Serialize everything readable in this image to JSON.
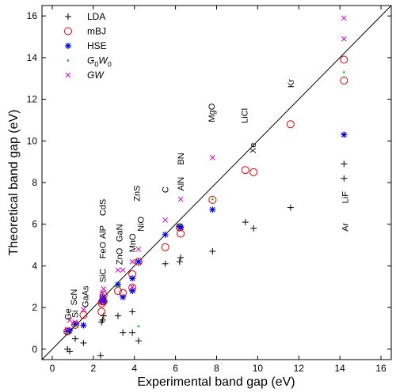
{
  "chart_data": {
    "type": "scatter",
    "xlabel": "Experimental band gap  (eV)",
    "ylabel": "Theoretical band gap  (eV)",
    "xlim": [
      -0.5,
      16.5
    ],
    "ylim": [
      -0.5,
      16.5
    ],
    "xticks": [
      0,
      2,
      4,
      6,
      8,
      10,
      12,
      14,
      16
    ],
    "yticks": [
      0,
      2,
      4,
      6,
      8,
      10,
      12,
      14,
      16
    ],
    "grid": false,
    "legend_position": "top-left",
    "reference_line": "y = x",
    "series": [
      {
        "name": "LDA",
        "marker": "plus",
        "color": "#000000",
        "points": [
          [
            0.74,
            0.0
          ],
          [
            0.85,
            -0.1
          ],
          [
            1.12,
            0.5
          ],
          [
            1.52,
            0.3
          ],
          [
            2.35,
            -0.3
          ],
          [
            2.4,
            1.3
          ],
          [
            2.45,
            1.4
          ],
          [
            2.5,
            1.6
          ],
          [
            3.2,
            1.6
          ],
          [
            3.44,
            0.8
          ],
          [
            3.9,
            0.8
          ],
          [
            3.9,
            1.8
          ],
          [
            4.2,
            0.4
          ],
          [
            5.5,
            4.1
          ],
          [
            6.2,
            4.2
          ],
          [
            6.25,
            4.4
          ],
          [
            7.8,
            4.7
          ],
          [
            9.4,
            6.1
          ],
          [
            9.8,
            5.8
          ],
          [
            11.6,
            6.8
          ],
          [
            14.2,
            8.9
          ],
          [
            14.2,
            8.2
          ]
        ]
      },
      {
        "name": "mBJ",
        "marker": "circle",
        "color": "#e00000",
        "points": [
          [
            0.74,
            0.85
          ],
          [
            1.12,
            1.17
          ],
          [
            1.52,
            1.64
          ],
          [
            2.4,
            1.8
          ],
          [
            2.42,
            2.2
          ],
          [
            2.45,
            2.3
          ],
          [
            2.5,
            2.3
          ],
          [
            2.5,
            2.6
          ],
          [
            3.2,
            2.8
          ],
          [
            3.44,
            2.7
          ],
          [
            3.9,
            2.95
          ],
          [
            3.9,
            3.6
          ],
          [
            4.2,
            4.2
          ],
          [
            5.5,
            4.9
          ],
          [
            6.2,
            5.85
          ],
          [
            6.25,
            5.55
          ],
          [
            7.8,
            7.17
          ],
          [
            9.4,
            8.6
          ],
          [
            9.8,
            8.5
          ],
          [
            11.6,
            10.8
          ],
          [
            14.2,
            13.9
          ],
          [
            14.2,
            12.9
          ]
        ]
      },
      {
        "name": "HSE",
        "marker": "asterisk",
        "color": "#0000e0",
        "points": [
          [
            0.74,
            0.85
          ],
          [
            0.85,
            0.9
          ],
          [
            1.12,
            1.2
          ],
          [
            1.52,
            1.15
          ],
          [
            2.4,
            2.3
          ],
          [
            2.42,
            2.4
          ],
          [
            2.45,
            2.5
          ],
          [
            2.5,
            2.3
          ],
          [
            3.2,
            3.1
          ],
          [
            3.44,
            2.5
          ],
          [
            3.9,
            2.8
          ],
          [
            3.9,
            3.4
          ],
          [
            4.2,
            4.2
          ],
          [
            5.5,
            5.5
          ],
          [
            6.2,
            5.9
          ],
          [
            6.25,
            5.85
          ],
          [
            7.8,
            6.7
          ],
          [
            14.2,
            10.3
          ]
        ]
      },
      {
        "name": "G₀W₀",
        "marker": "dot",
        "color": "#00cc00",
        "points": [
          [
            0.74,
            0.8
          ],
          [
            1.12,
            1.1
          ],
          [
            2.4,
            2.5
          ],
          [
            3.2,
            3.0
          ],
          [
            4.2,
            1.1
          ],
          [
            6.2,
            6.0
          ],
          [
            7.8,
            7.2
          ],
          [
            14.2,
            13.3
          ]
        ]
      },
      {
        "name": "GW",
        "marker": "cross",
        "color": "#d000d0",
        "points": [
          [
            0.74,
            0.95
          ],
          [
            0.85,
            1.4
          ],
          [
            1.12,
            1.3
          ],
          [
            1.52,
            1.9
          ],
          [
            2.4,
            2.3
          ],
          [
            2.42,
            2.5
          ],
          [
            2.45,
            2.7
          ],
          [
            2.5,
            2.9
          ],
          [
            3.2,
            3.8
          ],
          [
            3.44,
            3.8
          ],
          [
            3.9,
            3.0
          ],
          [
            3.9,
            4.2
          ],
          [
            4.2,
            4.8
          ],
          [
            5.5,
            6.2
          ],
          [
            6.25,
            7.2
          ],
          [
            7.8,
            9.2
          ],
          [
            14.2,
            15.9
          ],
          [
            14.2,
            14.9
          ]
        ]
      }
    ],
    "legend": [
      {
        "label": "LDA",
        "marker": "plus",
        "color": "#000000"
      },
      {
        "label": "mBJ",
        "marker": "circle",
        "color": "#e00000"
      },
      {
        "label": "HSE",
        "marker": "asterisk",
        "color": "#0000e0"
      },
      {
        "label": "G",
        "sub": "0",
        "label2": "W",
        "sub2": "0",
        "marker": "dot",
        "color": "#00cc00",
        "italic": true
      },
      {
        "label": "GW",
        "marker": "cross",
        "color": "#d000d0",
        "italic": true
      }
    ],
    "annotations": [
      {
        "text": "Ge",
        "x": 0.75,
        "y": 1.4
      },
      {
        "text": "Si",
        "x": 1.1,
        "y": 1.5
      },
      {
        "text": "ScN",
        "x": 1.05,
        "y": 2.1
      },
      {
        "text": "GaAs",
        "x": 1.6,
        "y": 2.0
      },
      {
        "text": "SiC",
        "x": 2.45,
        "y": 3.2
      },
      {
        "text": "FeO",
        "x": 2.45,
        "y": 4.35
      },
      {
        "text": "AlP",
        "x": 2.45,
        "y": 5.3
      },
      {
        "text": "CdS",
        "x": 2.45,
        "y": 6.4
      },
      {
        "text": "ZnO",
        "x": 3.25,
        "y": 4.05
      },
      {
        "text": "GaN",
        "x": 3.25,
        "y": 5.15
      },
      {
        "text": "MnO",
        "x": 3.9,
        "y": 4.65
      },
      {
        "text": "NiO",
        "x": 4.3,
        "y": 5.65
      },
      {
        "text": "ZnS",
        "x": 4.1,
        "y": 7.1
      },
      {
        "text": "C",
        "x": 5.5,
        "y": 7.5
      },
      {
        "text": "AlN",
        "x": 6.25,
        "y": 7.6
      },
      {
        "text": "BN",
        "x": 6.25,
        "y": 8.85
      },
      {
        "text": "MgO",
        "x": 7.75,
        "y": 10.9
      },
      {
        "text": "LiCl",
        "x": 9.35,
        "y": 10.85
      },
      {
        "text": "Xe",
        "x": 9.75,
        "y": 9.4
      },
      {
        "text": "Kr",
        "x": 11.6,
        "y": 12.55
      },
      {
        "text": "LiF",
        "x": 14.25,
        "y": 7.0
      },
      {
        "text": "Ar",
        "x": 14.25,
        "y": 5.65
      }
    ]
  }
}
